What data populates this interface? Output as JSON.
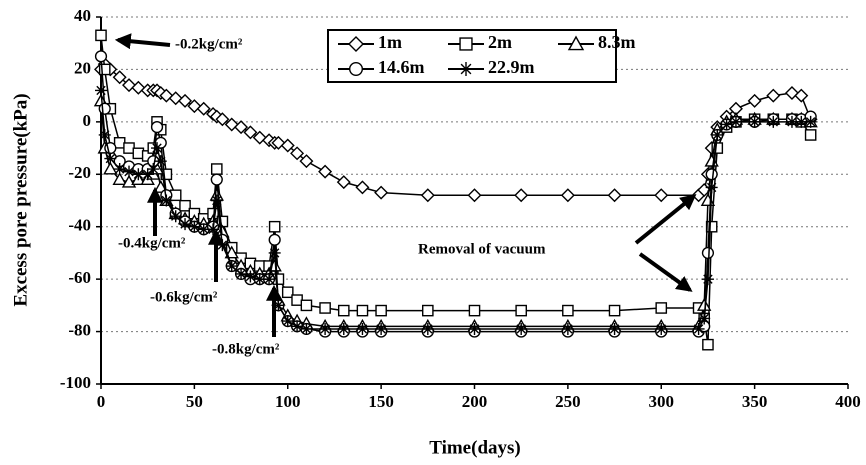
{
  "chart_data": {
    "type": "line",
    "xlabel": "Time(days)",
    "ylabel": "Excess pore pressure(kPa)",
    "xlim": [
      0,
      400
    ],
    "ylim": [
      -100,
      40
    ],
    "xticks": [
      0,
      50,
      100,
      150,
      200,
      250,
      300,
      350,
      400
    ],
    "yticks": [
      -100,
      -80,
      -60,
      -40,
      -20,
      0,
      20,
      40
    ],
    "grid": true,
    "legend": "top",
    "annotations": [
      "-0.2kg/cm²",
      "-0.4kg/cm²",
      "-0.6kg/cm²",
      "-0.8kg/cm²",
      "Removal of vacuum"
    ],
    "x": [
      0,
      2,
      5,
      10,
      15,
      20,
      25,
      28,
      30,
      32,
      35,
      40,
      45,
      50,
      55,
      60,
      62,
      65,
      70,
      75,
      80,
      85,
      90,
      93,
      95,
      100,
      105,
      110,
      120,
      130,
      140,
      150,
      175,
      200,
      225,
      250,
      275,
      300,
      320,
      323,
      325,
      327,
      330,
      335,
      340,
      350,
      360,
      370,
      375,
      380
    ],
    "series": [
      {
        "name": "1m",
        "color": "#000000",
        "marker": "diamond",
        "values": [
          20,
          22,
          20,
          17,
          14,
          13,
          12,
          12,
          12,
          11,
          10,
          9,
          8,
          6,
          5,
          3,
          2,
          1,
          -1,
          -2,
          -4,
          -6,
          -7,
          -8,
          -8,
          -9,
          -12,
          -15,
          -19,
          -23,
          -25,
          -27,
          -28,
          -28,
          -28,
          -28,
          -28,
          -28,
          -28,
          -26,
          -20,
          -10,
          -2,
          2,
          5,
          8,
          10,
          11,
          10,
          1
        ]
      },
      {
        "name": "2m",
        "color": "#000000",
        "marker": "square",
        "values": [
          33,
          20,
          5,
          -8,
          -10,
          -12,
          -13,
          -10,
          0,
          -3,
          -20,
          -28,
          -32,
          -35,
          -37,
          -35,
          -18,
          -38,
          -48,
          -52,
          -54,
          -55,
          -55,
          -40,
          -60,
          -65,
          -68,
          -70,
          -71,
          -72,
          -72,
          -72,
          -72,
          -72,
          -72,
          -72,
          -72,
          -71,
          -71,
          -75,
          -85,
          -40,
          -10,
          -2,
          0,
          1,
          1,
          1,
          0,
          -5
        ]
      },
      {
        "name": "8.3m",
        "color": "#000000",
        "marker": "triangle",
        "values": [
          8,
          -10,
          -18,
          -22,
          -23,
          -22,
          -22,
          -20,
          -18,
          -25,
          -30,
          -35,
          -37,
          -38,
          -39,
          -38,
          -28,
          -42,
          -50,
          -55,
          -57,
          -58,
          -58,
          -55,
          -68,
          -74,
          -76,
          -77,
          -78,
          -78,
          -78,
          -78,
          -78,
          -78,
          -78,
          -78,
          -78,
          -78,
          -78,
          -70,
          -30,
          -15,
          -3,
          0,
          1,
          1,
          1,
          1,
          1,
          0
        ]
      },
      {
        "name": "14.6m",
        "color": "#000000",
        "marker": "circle",
        "values": [
          25,
          5,
          -10,
          -15,
          -17,
          -18,
          -18,
          -15,
          -2,
          -8,
          -28,
          -35,
          -38,
          -40,
          -41,
          -40,
          -22,
          -45,
          -55,
          -58,
          -60,
          -60,
          -60,
          -45,
          -70,
          -76,
          -78,
          -79,
          -80,
          -80,
          -80,
          -80,
          -80,
          -80,
          -80,
          -80,
          -80,
          -80,
          -80,
          -78,
          -50,
          -20,
          -5,
          -1,
          0,
          0,
          1,
          1,
          1,
          2
        ]
      },
      {
        "name": "22.9m",
        "color": "#000000",
        "marker": "star",
        "values": [
          12,
          -5,
          -14,
          -18,
          -19,
          -20,
          -20,
          -18,
          -10,
          -15,
          -30,
          -36,
          -39,
          -40,
          -41,
          -41,
          -30,
          -47,
          -55,
          -58,
          -59,
          -60,
          -60,
          -50,
          -70,
          -76,
          -78,
          -79,
          -79,
          -79,
          -79,
          -79,
          -79,
          -79,
          -79,
          -79,
          -79,
          -79,
          -79,
          -75,
          -60,
          -25,
          -5,
          -1,
          0,
          0,
          0,
          0,
          0,
          0
        ]
      }
    ]
  }
}
